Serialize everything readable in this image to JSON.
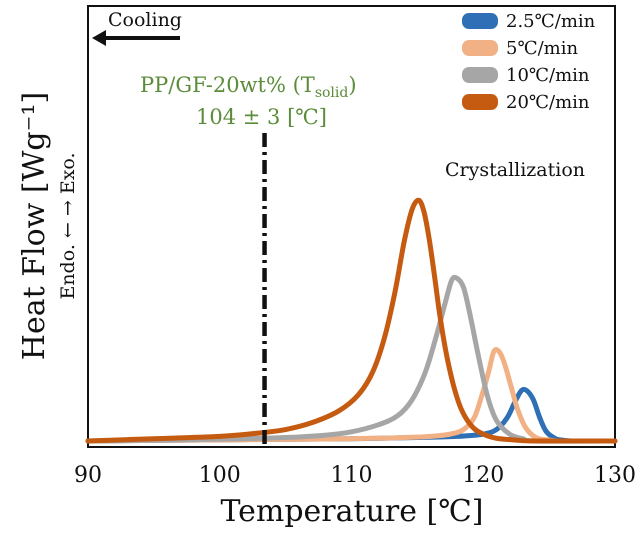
{
  "chart_data": {
    "type": "line",
    "xlabel": "Temperature [℃]",
    "ylabel": "Heat Flow [Wg⁻¹]",
    "ylabel_sub": "Endo. ← → Exo.",
    "xlim": [
      90,
      130
    ],
    "ylim": [
      0,
      1.4
    ],
    "xticks": [
      "90",
      "100",
      "110",
      "120",
      "130"
    ],
    "grid": false,
    "legend_position": "top-right",
    "series": [
      {
        "name": "2.5℃/min",
        "color": "#2e6fb5",
        "x": [
          90,
          100,
          110,
          115,
          118,
          120,
          121,
          121.8,
          122.4,
          122.9,
          123.3,
          123.8,
          124.3,
          124.8,
          125.5,
          126,
          127,
          130
        ],
        "y": [
          0,
          0.005,
          0.01,
          0.015,
          0.02,
          0.03,
          0.05,
          0.1,
          0.17,
          0.22,
          0.22,
          0.18,
          0.1,
          0.04,
          0.01,
          0.004,
          0,
          0
        ]
      },
      {
        "name": "5℃/min",
        "color": "#f2b184",
        "x": [
          90,
          100,
          110,
          114,
          116,
          117.5,
          118.5,
          119.3,
          119.9,
          120.4,
          120.8,
          121.2,
          121.6,
          122.1,
          122.6,
          123.2,
          124,
          125,
          126,
          130
        ],
        "y": [
          0,
          0.005,
          0.01,
          0.015,
          0.02,
          0.03,
          0.05,
          0.1,
          0.2,
          0.3,
          0.39,
          0.39,
          0.34,
          0.24,
          0.14,
          0.06,
          0.015,
          0.004,
          0,
          0
        ]
      },
      {
        "name": "10℃/min",
        "color": "#a6a6a6",
        "x": [
          90,
          100,
          105,
          108,
          110,
          112,
          113.5,
          114.6,
          115.6,
          116.4,
          117.1,
          117.6,
          118,
          118.5,
          119,
          119.6,
          120.3,
          121,
          122,
          123,
          124,
          130
        ],
        "y": [
          0,
          0.008,
          0.015,
          0.025,
          0.04,
          0.07,
          0.11,
          0.18,
          0.3,
          0.45,
          0.6,
          0.7,
          0.71,
          0.67,
          0.55,
          0.38,
          0.2,
          0.09,
          0.03,
          0.01,
          0,
          0
        ]
      },
      {
        "name": "20℃/min",
        "color": "#c55a11",
        "x": [
          90,
          95,
          100,
          103,
          105,
          107,
          109,
          110.5,
          111.6,
          112.5,
          113.3,
          114,
          114.6,
          115.1,
          115.5,
          115.9,
          116.3,
          116.7,
          117.2,
          117.8,
          118.4,
          119.2,
          120,
          121,
          122.5,
          124,
          130
        ],
        "y": [
          0,
          0.01,
          0.02,
          0.035,
          0.05,
          0.08,
          0.13,
          0.2,
          0.3,
          0.45,
          0.65,
          0.87,
          1.01,
          1.05,
          1.0,
          0.88,
          0.72,
          0.55,
          0.38,
          0.23,
          0.13,
          0.06,
          0.03,
          0.012,
          0.004,
          0,
          0
        ]
      }
    ],
    "annotations": {
      "cooling": "Cooling",
      "line_label_1": "PP/GF-20wt% (T",
      "line_label_1_sub": "solid",
      "line_label_1_end": ")",
      "line_label_2": "104 ± 3 [℃]",
      "crystallization": "Crystallization",
      "vertical_line_x": 103.4
    }
  }
}
